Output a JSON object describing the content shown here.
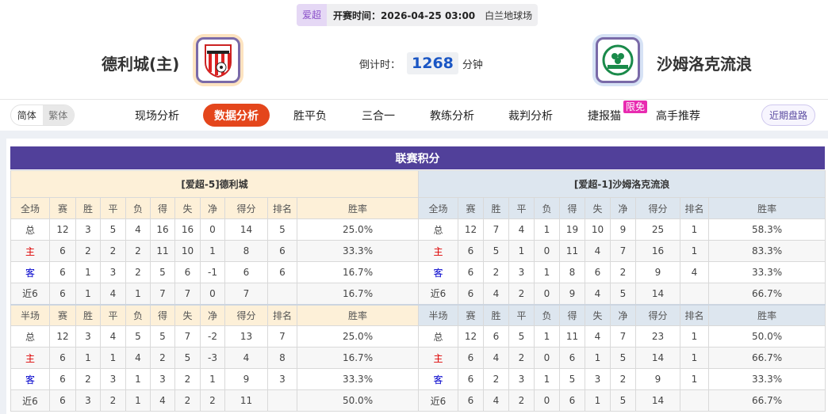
{
  "match": {
    "league": "爱超",
    "kickoff_label": "开赛时间：2026-04-25 03:00",
    "venue": "白兰地球场",
    "countdown_label": "倒计时：",
    "countdown_value": "1268",
    "countdown_unit": "分钟"
  },
  "home_team": {
    "name": "德利城(主)",
    "logo": "derry-city-crest"
  },
  "away_team": {
    "name": "沙姆洛克流浪",
    "logo": "shamrock-rovers-crest"
  },
  "lang": {
    "simplified": "简体",
    "traditional": "繁体"
  },
  "nav": {
    "items": [
      "现场分析",
      "数据分析",
      "胜平负",
      "三合一",
      "教练分析",
      "裁判分析",
      "捷报猫",
      "高手推荐"
    ],
    "active": "数据分析",
    "badge": "限免",
    "recent": "近期盘路"
  },
  "colors": {
    "accent": "#e4461c",
    "title_bar": "#51409a",
    "home_row": "#dd0000",
    "away_row": "#0000cc"
  },
  "standings": {
    "title": "联赛积分",
    "columns": [
      "赛",
      "胜",
      "平",
      "负",
      "得",
      "失",
      "净",
      "得分",
      "排名",
      "胜率"
    ],
    "full_label": "全场",
    "half_label": "半场",
    "home": {
      "caption": "[爱超-5]德利城",
      "full": [
        [
          "总",
          "12",
          "3",
          "5",
          "4",
          "16",
          "16",
          "0",
          "14",
          "5",
          "25.0%"
        ],
        [
          "主",
          "6",
          "2",
          "2",
          "2",
          "11",
          "10",
          "1",
          "8",
          "6",
          "33.3%"
        ],
        [
          "客",
          "6",
          "1",
          "3",
          "2",
          "5",
          "6",
          "-1",
          "6",
          "6",
          "16.7%"
        ],
        [
          "近6",
          "6",
          "1",
          "4",
          "1",
          "7",
          "7",
          "0",
          "7",
          "",
          "16.7%"
        ]
      ],
      "half": [
        [
          "总",
          "12",
          "3",
          "4",
          "5",
          "5",
          "7",
          "-2",
          "13",
          "7",
          "25.0%"
        ],
        [
          "主",
          "6",
          "1",
          "1",
          "4",
          "2",
          "5",
          "-3",
          "4",
          "8",
          "16.7%"
        ],
        [
          "客",
          "6",
          "2",
          "3",
          "1",
          "3",
          "2",
          "1",
          "9",
          "3",
          "33.3%"
        ],
        [
          "近6",
          "6",
          "3",
          "2",
          "1",
          "4",
          "2",
          "2",
          "11",
          "",
          "50.0%"
        ]
      ]
    },
    "away": {
      "caption": "[爱超-1]沙姆洛克流浪",
      "full": [
        [
          "总",
          "12",
          "7",
          "4",
          "1",
          "19",
          "10",
          "9",
          "25",
          "1",
          "58.3%"
        ],
        [
          "主",
          "6",
          "5",
          "1",
          "0",
          "11",
          "4",
          "7",
          "16",
          "1",
          "83.3%"
        ],
        [
          "客",
          "6",
          "2",
          "3",
          "1",
          "8",
          "6",
          "2",
          "9",
          "4",
          "33.3%"
        ],
        [
          "近6",
          "6",
          "4",
          "2",
          "0",
          "9",
          "4",
          "5",
          "14",
          "",
          "66.7%"
        ]
      ],
      "half": [
        [
          "总",
          "12",
          "6",
          "5",
          "1",
          "11",
          "4",
          "7",
          "23",
          "1",
          "50.0%"
        ],
        [
          "主",
          "6",
          "4",
          "2",
          "0",
          "6",
          "1",
          "5",
          "14",
          "1",
          "66.7%"
        ],
        [
          "客",
          "6",
          "2",
          "3",
          "1",
          "5",
          "3",
          "2",
          "9",
          "1",
          "33.3%"
        ],
        [
          "近6",
          "6",
          "4",
          "2",
          "0",
          "6",
          "1",
          "5",
          "14",
          "",
          "66.7%"
        ]
      ]
    }
  }
}
